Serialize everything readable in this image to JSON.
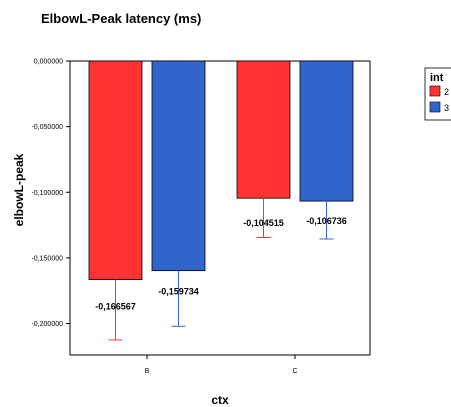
{
  "chart_data": {
    "type": "bar",
    "title": "ElbowL-Peak latency (ms)",
    "xlabel": "ctx",
    "ylabel": "elbowL-peak",
    "categories": [
      "B",
      "C"
    ],
    "ylim": [
      -0.224,
      0.0
    ],
    "yticks": [
      0.0,
      -0.05,
      -0.1,
      -0.15,
      -0.2
    ],
    "ytick_labels": [
      "0,000000",
      "-0,050000",
      "-0,100000",
      "-0,150000",
      "-0,200000"
    ],
    "grid": false,
    "legend": {
      "title": "int",
      "placement": "top-right",
      "entries": [
        "2",
        "3"
      ]
    },
    "series": [
      {
        "name": "2",
        "color": "#ff3333",
        "values": [
          -0.166567,
          -0.104515
        ],
        "labels": [
          "-0,166567",
          "-0,104515"
        ],
        "error_low": [
          -0.2125,
          -0.1345
        ],
        "error_high": [
          -0.1675,
          -0.1045
        ]
      },
      {
        "name": "3",
        "color": "#3366cc",
        "values": [
          -0.159734,
          -0.106736
        ],
        "labels": [
          "-0,159734",
          "-0,106736"
        ],
        "error_low": [
          -0.2021,
          -0.1356
        ],
        "error_high": [
          -0.1597,
          -0.1067
        ]
      }
    ]
  }
}
